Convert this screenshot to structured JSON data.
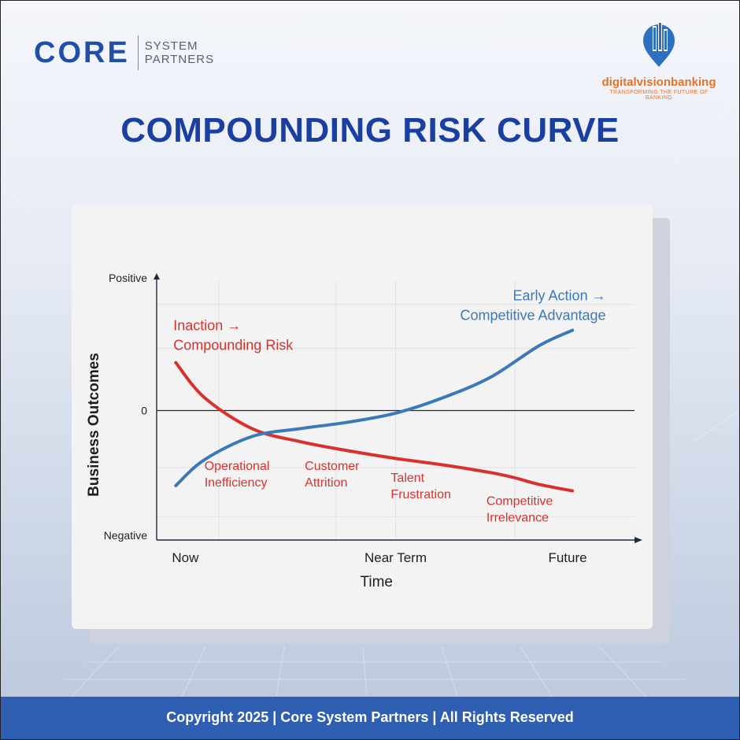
{
  "brand": {
    "core_word": "CORE",
    "core_sub_line1": "SYSTEM",
    "core_sub_line2": "PARTNERS",
    "partner_name": "digitalvisionbanking",
    "partner_tagline": "TRANSFORMING THE FUTURE OF BANKING",
    "logo_icon": "city-pin-icon"
  },
  "page": {
    "title": "COMPOUNDING RISK CURVE"
  },
  "footer": {
    "text": "Copyright 2025 | Core System Partners | All Rights Reserved"
  },
  "colors": {
    "title_blue": "#1a3fa0",
    "inaction_red": "#d8322f",
    "action_blue": "#3a7ab8",
    "footer_blue": "#2f5fb2",
    "brand_orange": "#e3732c"
  },
  "chart_data": {
    "type": "line",
    "xlabel": "Time",
    "ylabel": "Business Outcomes",
    "x_ticks": [
      "Now",
      "Near Term",
      "Future"
    ],
    "y_ticks": {
      "top": "Positive",
      "zero": "0",
      "bottom": "Negative"
    },
    "x_range": [
      0,
      10
    ],
    "y_range": [
      -10,
      10
    ],
    "grid": true,
    "series": [
      {
        "name": "Inaction → Compounding Risk",
        "label_line1": "Inaction →",
        "label_line2": "Compounding Risk",
        "color": "#d8322f",
        "x": [
          0.4,
          1,
          2,
          3,
          4,
          5,
          6,
          7,
          7.5,
          8,
          8.7
        ],
        "y": [
          3.7,
          1.0,
          -1.4,
          -2.4,
          -3.1,
          -3.7,
          -4.2,
          -4.8,
          -5.2,
          -5.7,
          -6.2
        ]
      },
      {
        "name": "Early Action → Competitive Advantage",
        "label_line1": "Early Action →",
        "label_line2": "Competitive Advantage",
        "color": "#3a7ab8",
        "x": [
          0.4,
          1,
          2,
          3,
          4,
          5,
          6,
          7,
          8,
          8.7
        ],
        "y": [
          -5.8,
          -3.8,
          -2.0,
          -1.4,
          -0.9,
          -0.2,
          1.0,
          2.6,
          5.0,
          6.2
        ]
      }
    ],
    "annotations": [
      {
        "line1": "Operational",
        "line2": "Inefficiency",
        "x": 1.0,
        "y": -4.6
      },
      {
        "line1": "Customer",
        "line2": "Attrition",
        "x": 3.1,
        "y": -4.6
      },
      {
        "line1": "Talent",
        "line2": "Frustration",
        "x": 4.9,
        "y": -5.5
      },
      {
        "line1": "Competitive",
        "line2": "Irrelevance",
        "x": 6.9,
        "y": -7.3
      }
    ]
  }
}
